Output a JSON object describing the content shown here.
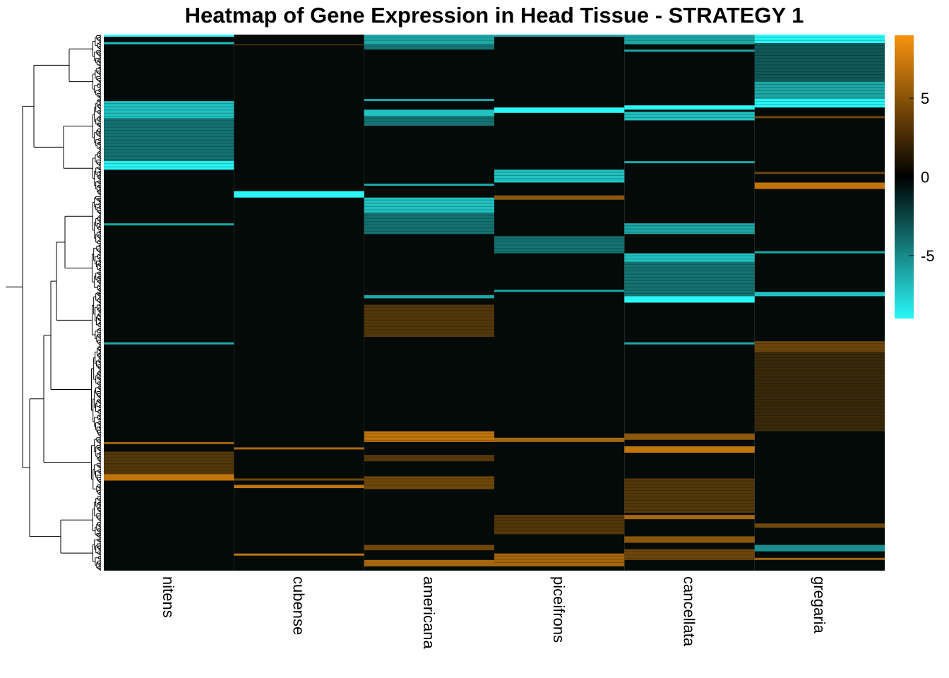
{
  "chart_data": {
    "type": "heatmap",
    "title": "Heatmap of Gene Expression in Head Tissue - STRATEGY 1",
    "columns": [
      "nitens",
      "cubense",
      "americana",
      "piceifrons",
      "cancellata",
      "gregaria"
    ],
    "row_count": 500,
    "dendrogram": "rows, left side",
    "color_scale": {
      "low_color": "#2af7f7",
      "mid_color": "#000000",
      "high_color": "#f7940f",
      "min": -9,
      "max": 9,
      "ticks": [
        5,
        0,
        -5
      ]
    },
    "blocks": [
      {
        "col": 0,
        "from": 0,
        "to": 2,
        "v": -9
      },
      {
        "col": 0,
        "from": 7,
        "to": 9,
        "v": -7
      },
      {
        "col": 0,
        "from": 62,
        "to": 78,
        "v": -7
      },
      {
        "col": 0,
        "from": 78,
        "to": 118,
        "v": -4
      },
      {
        "col": 0,
        "from": 118,
        "to": 126,
        "v": -9
      },
      {
        "col": 0,
        "from": 176,
        "to": 178,
        "v": -6
      },
      {
        "col": 0,
        "from": 287,
        "to": 289,
        "v": -6
      },
      {
        "col": 0,
        "from": 380,
        "to": 382,
        "v": 6
      },
      {
        "col": 0,
        "from": 389,
        "to": 410,
        "v": 3
      },
      {
        "col": 0,
        "from": 410,
        "to": 416,
        "v": 7
      },
      {
        "col": 1,
        "from": 9,
        "to": 10,
        "v": 3
      },
      {
        "col": 1,
        "from": 146,
        "to": 152,
        "v": -9
      },
      {
        "col": 1,
        "from": 385,
        "to": 387,
        "v": 6
      },
      {
        "col": 1,
        "from": 414,
        "to": 416,
        "v": 4
      },
      {
        "col": 1,
        "from": 420,
        "to": 423,
        "v": 7
      },
      {
        "col": 1,
        "from": 484,
        "to": 486,
        "v": 7
      },
      {
        "col": 2,
        "from": 0,
        "to": 9,
        "v": -6
      },
      {
        "col": 2,
        "from": 9,
        "to": 14,
        "v": -4
      },
      {
        "col": 2,
        "from": 60,
        "to": 62,
        "v": -6
      },
      {
        "col": 2,
        "from": 70,
        "to": 76,
        "v": -7
      },
      {
        "col": 2,
        "from": 76,
        "to": 85,
        "v": -4
      },
      {
        "col": 2,
        "from": 139,
        "to": 141,
        "v": -6
      },
      {
        "col": 2,
        "from": 152,
        "to": 166,
        "v": -7
      },
      {
        "col": 2,
        "from": 166,
        "to": 186,
        "v": -4
      },
      {
        "col": 2,
        "from": 243,
        "to": 246,
        "v": -6
      },
      {
        "col": 2,
        "from": 252,
        "to": 282,
        "v": 3
      },
      {
        "col": 2,
        "from": 370,
        "to": 380,
        "v": 7
      },
      {
        "col": 2,
        "from": 392,
        "to": 398,
        "v": 3
      },
      {
        "col": 2,
        "from": 412,
        "to": 424,
        "v": 4
      },
      {
        "col": 2,
        "from": 476,
        "to": 481,
        "v": 4
      },
      {
        "col": 2,
        "from": 490,
        "to": 496,
        "v": 6
      },
      {
        "col": 3,
        "from": 0,
        "to": 2,
        "v": -6
      },
      {
        "col": 3,
        "from": 68,
        "to": 73,
        "v": -9
      },
      {
        "col": 3,
        "from": 126,
        "to": 138,
        "v": -7
      },
      {
        "col": 3,
        "from": 150,
        "to": 154,
        "v": 5
      },
      {
        "col": 3,
        "from": 188,
        "to": 204,
        "v": -4
      },
      {
        "col": 3,
        "from": 238,
        "to": 240,
        "v": -6
      },
      {
        "col": 3,
        "from": 376,
        "to": 380,
        "v": 6
      },
      {
        "col": 3,
        "from": 448,
        "to": 466,
        "v": 3
      },
      {
        "col": 3,
        "from": 484,
        "to": 496,
        "v": 6
      },
      {
        "col": 4,
        "from": 0,
        "to": 9,
        "v": -6
      },
      {
        "col": 4,
        "from": 14,
        "to": 16,
        "v": -6
      },
      {
        "col": 4,
        "from": 66,
        "to": 70,
        "v": -9
      },
      {
        "col": 4,
        "from": 72,
        "to": 80,
        "v": -7
      },
      {
        "col": 4,
        "from": 118,
        "to": 120,
        "v": -6
      },
      {
        "col": 4,
        "from": 176,
        "to": 186,
        "v": -6
      },
      {
        "col": 4,
        "from": 204,
        "to": 212,
        "v": -7
      },
      {
        "col": 4,
        "from": 212,
        "to": 244,
        "v": -4
      },
      {
        "col": 4,
        "from": 244,
        "to": 250,
        "v": -9
      },
      {
        "col": 4,
        "from": 287,
        "to": 289,
        "v": -6
      },
      {
        "col": 4,
        "from": 372,
        "to": 378,
        "v": 5
      },
      {
        "col": 4,
        "from": 384,
        "to": 390,
        "v": 7
      },
      {
        "col": 4,
        "from": 414,
        "to": 446,
        "v": 3
      },
      {
        "col": 4,
        "from": 448,
        "to": 452,
        "v": 6
      },
      {
        "col": 4,
        "from": 468,
        "to": 474,
        "v": 5
      },
      {
        "col": 4,
        "from": 480,
        "to": 490,
        "v": 4
      },
      {
        "col": 5,
        "from": 0,
        "to": 8,
        "v": -9
      },
      {
        "col": 5,
        "from": 8,
        "to": 44,
        "v": -3
      },
      {
        "col": 5,
        "from": 44,
        "to": 60,
        "v": -6
      },
      {
        "col": 5,
        "from": 60,
        "to": 68,
        "v": -9
      },
      {
        "col": 5,
        "from": 76,
        "to": 78,
        "v": 4
      },
      {
        "col": 5,
        "from": 128,
        "to": 130,
        "v": 4
      },
      {
        "col": 5,
        "from": 138,
        "to": 144,
        "v": 7
      },
      {
        "col": 5,
        "from": 202,
        "to": 204,
        "v": -6
      },
      {
        "col": 5,
        "from": 240,
        "to": 244,
        "v": -7
      },
      {
        "col": 5,
        "from": 286,
        "to": 296,
        "v": 4
      },
      {
        "col": 5,
        "from": 296,
        "to": 370,
        "v": 2
      },
      {
        "col": 5,
        "from": 456,
        "to": 460,
        "v": 4
      },
      {
        "col": 5,
        "from": 476,
        "to": 482,
        "v": -5
      },
      {
        "col": 5,
        "from": 488,
        "to": 490,
        "v": 6
      }
    ]
  }
}
